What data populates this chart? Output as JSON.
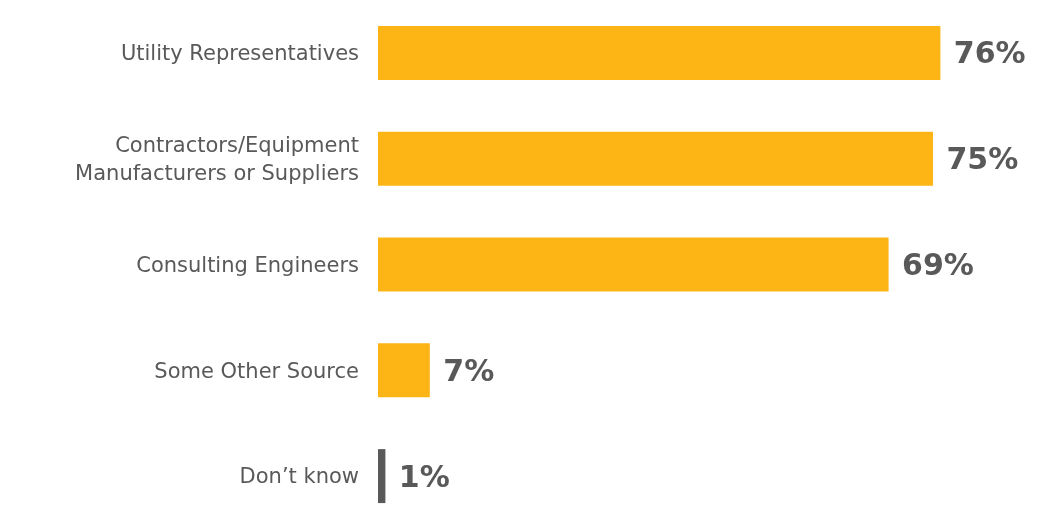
{
  "chart_data": {
    "type": "bar",
    "orientation": "horizontal",
    "categories": [
      "Utility Representatives",
      "Contractors/Equipment\nManufacturers or Suppliers",
      "Consulting Engineers",
      "Some Other Source",
      "Don’t know"
    ],
    "values": [
      76,
      75,
      69,
      7,
      1
    ],
    "colors": [
      "#fdb515",
      "#fdb515",
      "#fdb515",
      "#fdb515",
      "#595959"
    ],
    "value_labels": [
      "76%",
      "75%",
      "69%",
      "7%",
      "1%"
    ]
  }
}
